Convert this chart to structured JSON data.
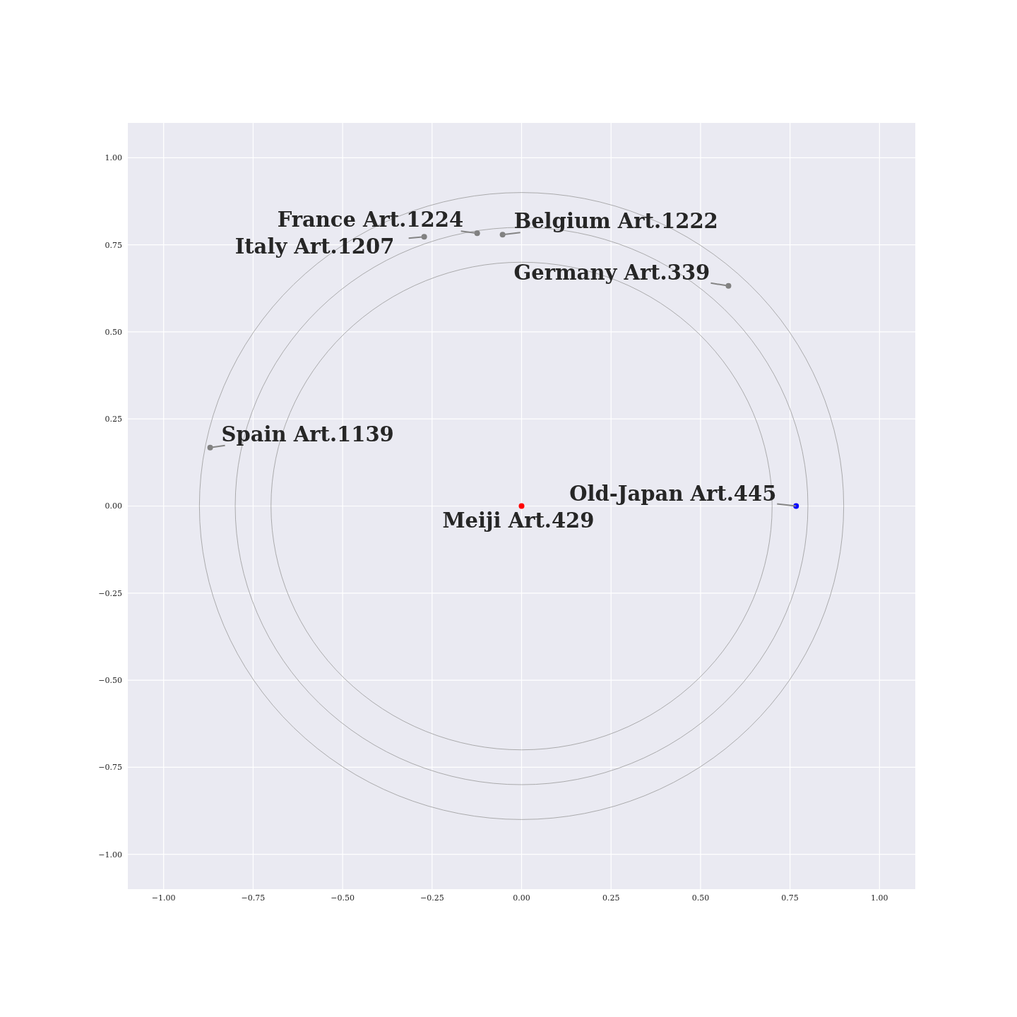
{
  "chart_data": {
    "type": "scatter",
    "xlim": [
      -1.1,
      1.1
    ],
    "ylim": [
      -1.1,
      1.1
    ],
    "xticks": [
      {
        "value": -1,
        "label": "−1.00"
      },
      {
        "value": -0.75,
        "label": "−0.75"
      },
      {
        "value": -0.5,
        "label": "−0.50"
      },
      {
        "value": -0.25,
        "label": "−0.25"
      },
      {
        "value": 0,
        "label": "0.00"
      },
      {
        "value": 0.25,
        "label": "0.25"
      },
      {
        "value": 0.5,
        "label": "0.50"
      },
      {
        "value": 0.75,
        "label": "0.75"
      },
      {
        "value": 1,
        "label": "1.00"
      }
    ],
    "yticks": [
      {
        "value": -1,
        "label": "−1.00"
      },
      {
        "value": -0.75,
        "label": "−0.75"
      },
      {
        "value": -0.5,
        "label": "−0.50"
      },
      {
        "value": -0.25,
        "label": "−0.25"
      },
      {
        "value": 0,
        "label": "0.00"
      },
      {
        "value": 0.25,
        "label": "0.25"
      },
      {
        "value": 0.5,
        "label": "0.50"
      },
      {
        "value": 0.75,
        "label": "0.75"
      },
      {
        "value": 1,
        "label": "1.00"
      }
    ],
    "grid": true,
    "marker": "circle",
    "series": [
      {
        "type": "scatter",
        "color": "#ff0000",
        "x": [
          0
        ],
        "values": [
          0
        ]
      },
      {
        "type": "scatter",
        "color": "#0000ff",
        "x": [
          0.767
        ],
        "values": [
          0
        ]
      },
      {
        "type": "scatter",
        "color": "#808080",
        "x": [
          -0.87
        ],
        "values": [
          0.168
        ]
      },
      {
        "type": "scatter",
        "color": "#808080",
        "x": [
          -0.272
        ],
        "values": [
          0.773
        ]
      },
      {
        "type": "scatter",
        "color": "#808080",
        "x": [
          -0.124
        ],
        "values": [
          0.783
        ]
      },
      {
        "type": "scatter",
        "color": "#808080",
        "x": [
          -0.053
        ],
        "values": [
          0.779
        ]
      },
      {
        "type": "scatter",
        "color": "#808080",
        "x": [
          0.578
        ],
        "values": [
          0.632
        ]
      }
    ],
    "annotations": [
      {
        "text": "Meiji Art.429",
        "x": 0,
        "y": 0
      },
      {
        "text": "Old-Japan Art.445",
        "x": 0.767,
        "y": 0
      },
      {
        "text": "Spain Art.1139",
        "x": -0.87,
        "y": 0.168
      },
      {
        "text": "Italy Art.1207",
        "x": -0.272,
        "y": 0.773
      },
      {
        "text": "France Art.1224",
        "x": -0.124,
        "y": 0.783
      },
      {
        "text": "Belgium Art.1222",
        "x": -0.053,
        "y": 0.779
      },
      {
        "text": "Germany Art.339",
        "x": 0.578,
        "y": 0.632
      }
    ]
  }
}
